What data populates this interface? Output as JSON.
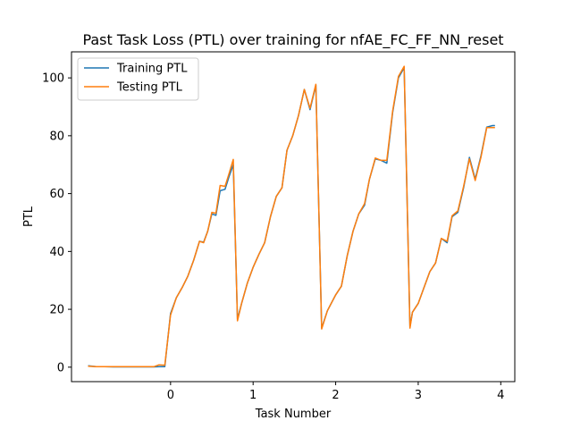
{
  "chart_data": {
    "type": "line",
    "title": "Past Task Loss (PTL) over training for nfAE_FC_FF_NN_reset",
    "xlabel": "Task Number",
    "ylabel": "PTL",
    "xlim": [
      -1.2,
      4.17
    ],
    "ylim": [
      -5,
      109
    ],
    "xticks": [
      0,
      1,
      2,
      3,
      4
    ],
    "yticks": [
      0,
      20,
      40,
      60,
      80,
      100
    ],
    "legend_position": "top-left",
    "grid": false,
    "series": [
      {
        "name": "Training PTL",
        "color": "#1f77b4",
        "x": [
          -1.0,
          -0.9,
          -0.8,
          -0.7,
          -0.6,
          -0.5,
          -0.4,
          -0.3,
          -0.2,
          -0.14,
          -0.07,
          0.0,
          0.07,
          0.14,
          0.21,
          0.28,
          0.35,
          0.4,
          0.45,
          0.5,
          0.55,
          0.6,
          0.66,
          0.71,
          0.76,
          0.81,
          0.86,
          0.93,
          1.0,
          1.07,
          1.14,
          1.21,
          1.28,
          1.35,
          1.41,
          1.48,
          1.55,
          1.62,
          1.69,
          1.76,
          1.83,
          1.9,
          2.0,
          2.07,
          2.14,
          2.21,
          2.28,
          2.35,
          2.41,
          2.48,
          2.55,
          2.62,
          2.69,
          2.76,
          2.83,
          2.9,
          2.93,
          3.0,
          3.07,
          3.14,
          3.21,
          3.28,
          3.35,
          3.41,
          3.48,
          3.55,
          3.62,
          3.69,
          3.76,
          3.83,
          3.9,
          3.93
        ],
        "values": [
          0.5,
          0.2,
          0.2,
          0.1,
          0.1,
          0.1,
          0.1,
          0.1,
          0.1,
          0.2,
          0.2,
          18.5,
          24,
          27.5,
          31.5,
          37,
          43.5,
          43.2,
          47,
          53,
          52.5,
          61,
          61.5,
          66,
          70,
          16.5,
          22,
          29,
          34.5,
          39,
          43,
          52,
          59,
          62,
          75,
          80,
          87,
          96,
          89,
          97.5,
          13.5,
          19.5,
          25,
          28,
          38.5,
          47,
          53,
          56,
          65,
          72,
          71.5,
          70.5,
          88,
          100,
          103.5,
          14,
          19,
          22,
          27.5,
          33,
          36,
          44.5,
          43,
          52,
          53.5,
          62,
          72.5,
          65,
          73,
          83,
          83.5,
          83.5
        ]
      },
      {
        "name": "Testing PTL",
        "color": "#ff7f0e",
        "x": [
          -1.0,
          -0.9,
          -0.8,
          -0.7,
          -0.6,
          -0.5,
          -0.4,
          -0.3,
          -0.2,
          -0.14,
          -0.07,
          0.0,
          0.07,
          0.14,
          0.21,
          0.28,
          0.35,
          0.4,
          0.45,
          0.5,
          0.55,
          0.6,
          0.66,
          0.71,
          0.76,
          0.81,
          0.86,
          0.93,
          1.0,
          1.07,
          1.14,
          1.21,
          1.28,
          1.35,
          1.41,
          1.48,
          1.55,
          1.62,
          1.69,
          1.76,
          1.83,
          1.9,
          2.0,
          2.07,
          2.14,
          2.21,
          2.28,
          2.35,
          2.41,
          2.48,
          2.55,
          2.62,
          2.69,
          2.76,
          2.83,
          2.9,
          2.93,
          3.0,
          3.07,
          3.14,
          3.21,
          3.28,
          3.35,
          3.41,
          3.48,
          3.55,
          3.62,
          3.69,
          3.76,
          3.83,
          3.9,
          3.93
        ],
        "values": [
          0.3,
          0.2,
          0.2,
          0.2,
          0.2,
          0.2,
          0.2,
          0.2,
          0.2,
          0.8,
          0.7,
          18,
          24,
          27.5,
          31.5,
          37,
          43.5,
          43,
          47,
          53.5,
          53.2,
          62.8,
          62.5,
          67,
          71.8,
          16,
          22,
          29,
          34.5,
          39,
          43,
          52,
          59,
          62,
          75,
          80,
          87,
          96,
          89.5,
          97.8,
          13.2,
          19.5,
          25,
          28,
          38.5,
          47,
          53,
          56.5,
          65,
          72.3,
          71.5,
          71.5,
          88.5,
          100.5,
          104,
          13.5,
          19,
          22,
          27.5,
          33,
          36,
          44.5,
          43.5,
          52.3,
          54,
          62.5,
          72,
          64.5,
          72.5,
          82.8,
          82.8,
          82.8
        ]
      }
    ]
  }
}
